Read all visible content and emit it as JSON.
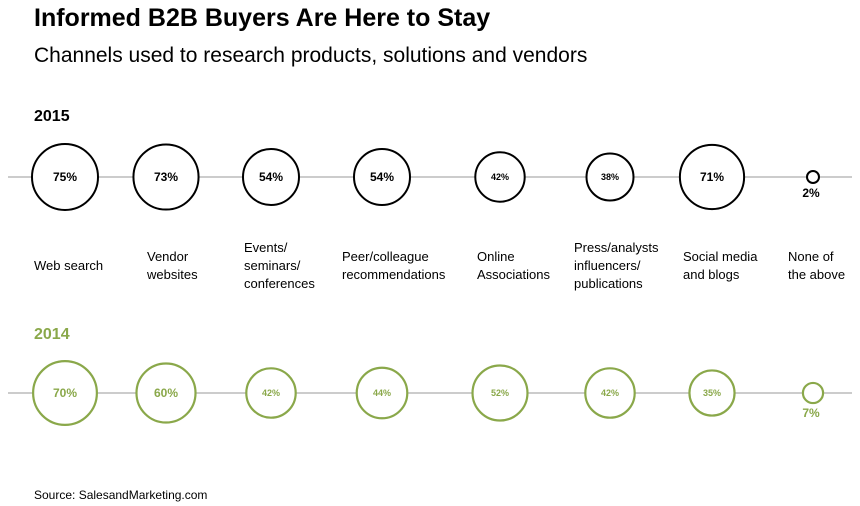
{
  "title": "Informed B2B Buyers Are Here to Stay",
  "subtitle": "Channels used to research products, solutions and vendors",
  "source": "Source: SalesandMarketing.com",
  "chart_data": {
    "type": "bubble",
    "categories": [
      "Web search",
      "Vendor\nwebsites",
      "Events/\nseminars/\nconferences",
      "Peer/colleague\nrecommendations",
      "Online\nAssociations",
      "Press/analysts\ninfluencers/\npublications",
      "Social media\nand blogs",
      "None of\nthe above"
    ],
    "series": [
      {
        "name": "2015",
        "color": "#000000",
        "values": [
          75,
          73,
          54,
          54,
          42,
          38,
          71,
          2
        ],
        "labels": [
          "75%",
          "73%",
          "54%",
          "54%",
          "42%",
          "38%",
          "71%",
          "2%"
        ]
      },
      {
        "name": "2014",
        "color": "#8aa84a",
        "values": [
          70,
          60,
          42,
          44,
          52,
          42,
          35,
          7
        ],
        "labels": [
          "70%",
          "60%",
          "42%",
          "44%",
          "52%",
          "42%",
          "35%",
          "7%"
        ]
      }
    ]
  }
}
